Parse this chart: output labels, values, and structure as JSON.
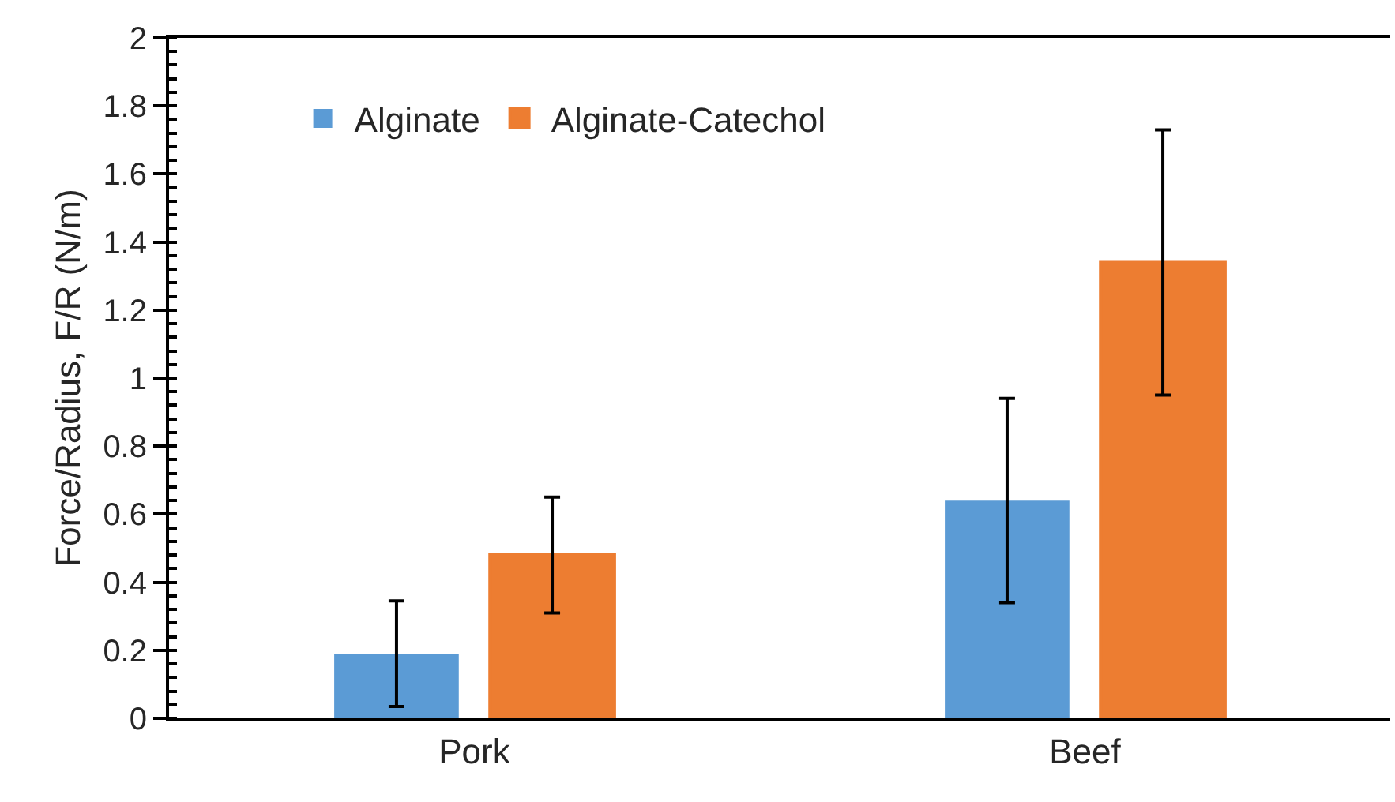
{
  "chart_data": {
    "type": "bar",
    "ylabel": "Force/Radius, F/R (N/m)",
    "categories": [
      "Pork",
      "Beef"
    ],
    "series": [
      {
        "name": "Alginate",
        "color": "#5b9bd5",
        "values": [
          0.19,
          0.64
        ],
        "errors": [
          0.155,
          0.3
        ]
      },
      {
        "name": "Alginate-Catechol",
        "color": "#ed7d31",
        "values": [
          0.48,
          1.34
        ],
        "errors": [
          0.17,
          0.39
        ]
      }
    ],
    "ylim": [
      0,
      2
    ],
    "yticks": [
      0,
      0.2,
      0.4,
      0.6,
      0.8,
      1,
      1.2,
      1.4,
      1.6,
      1.8,
      2
    ],
    "grid": false,
    "legend": "top left"
  }
}
